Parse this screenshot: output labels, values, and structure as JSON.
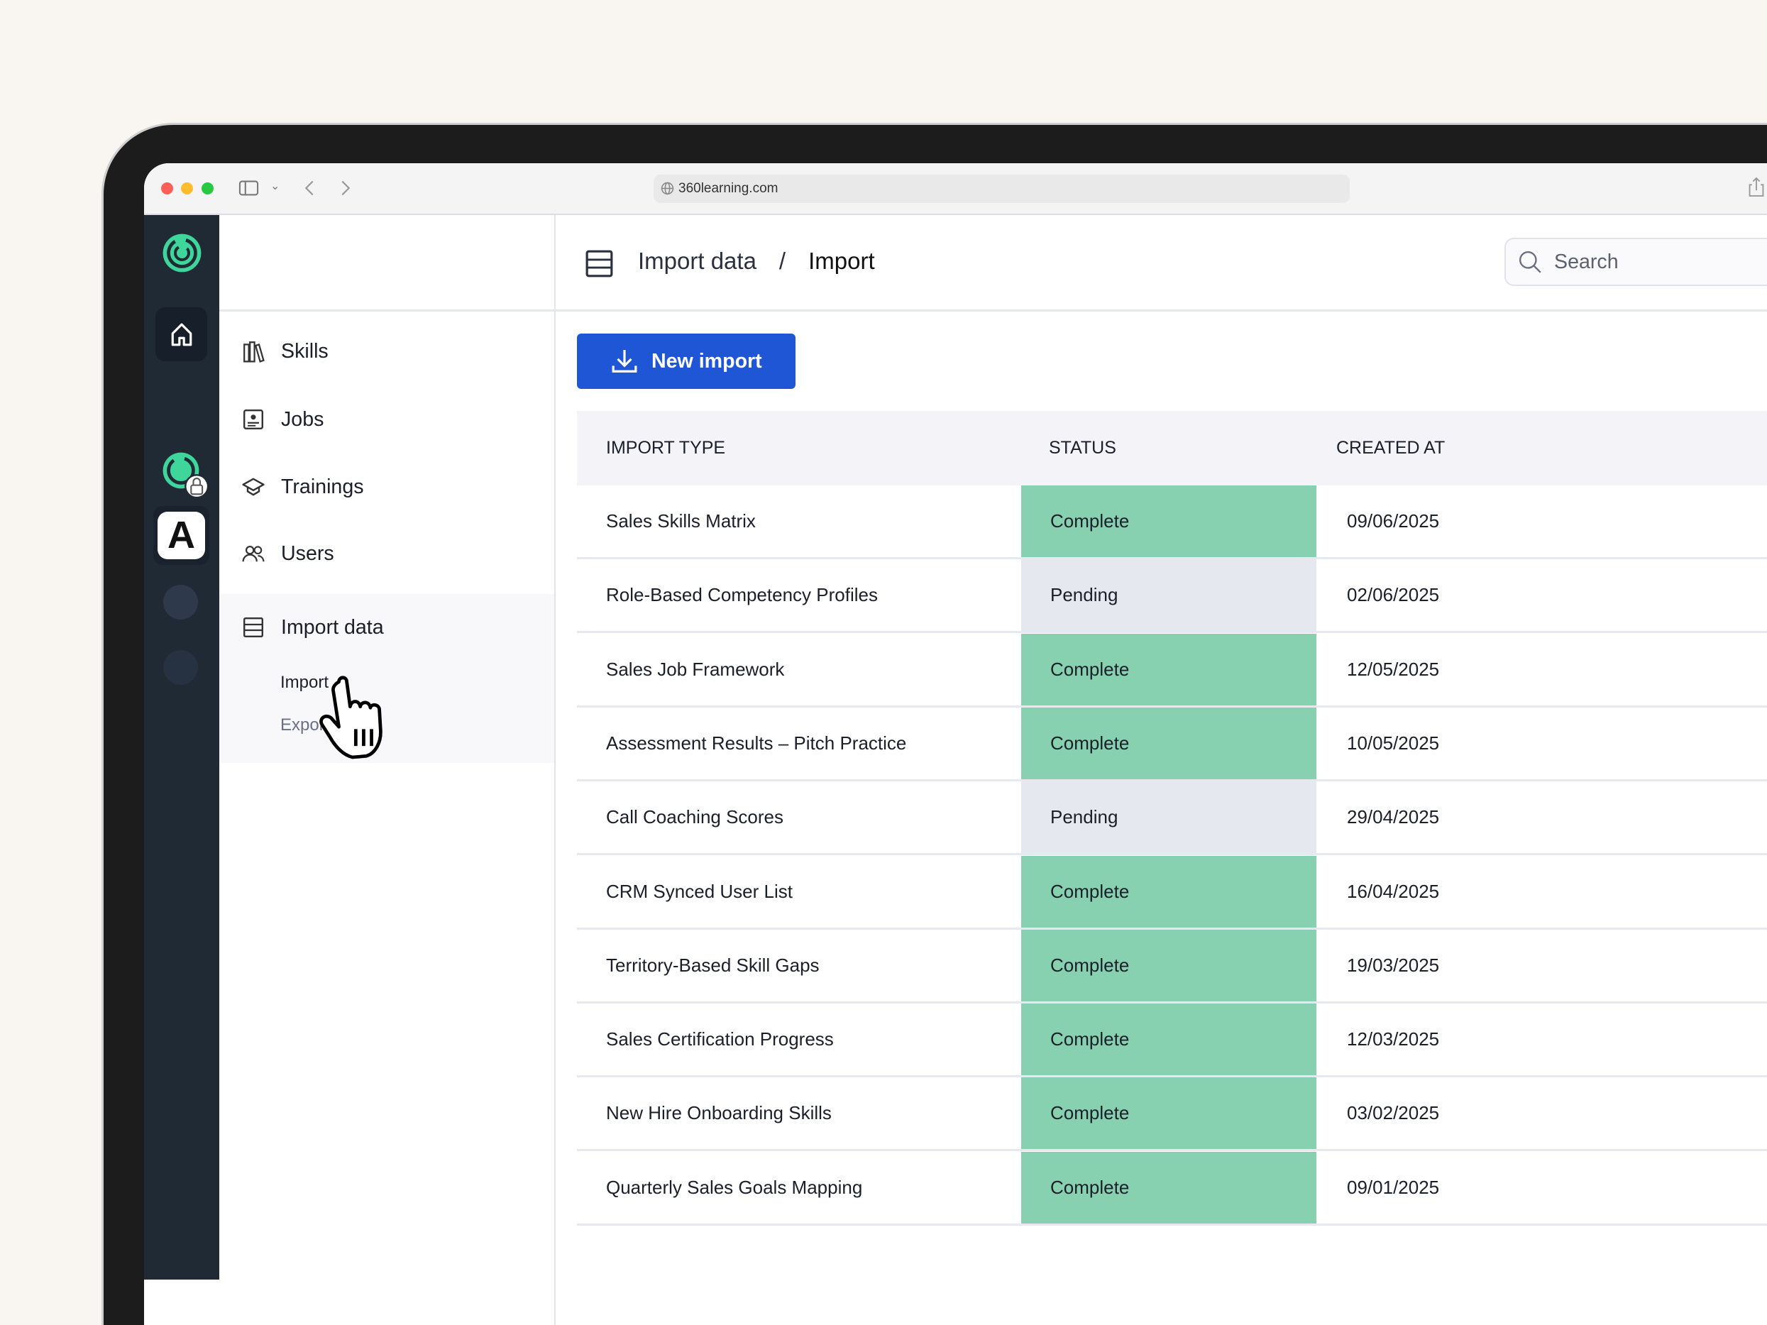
{
  "browser": {
    "url": "360learning.com"
  },
  "rail": {
    "workspace_letter": "A"
  },
  "sidebar": {
    "items": [
      {
        "label": "Skills",
        "icon": "books-icon"
      },
      {
        "label": "Jobs",
        "icon": "id-card-icon"
      },
      {
        "label": "Trainings",
        "icon": "graduation-cap-icon"
      },
      {
        "label": "Users",
        "icon": "users-icon"
      },
      {
        "label": "Import data",
        "icon": "table-icon",
        "active": true
      }
    ],
    "subitems": [
      {
        "label": "Import",
        "active": true
      },
      {
        "label": "Export"
      }
    ]
  },
  "header": {
    "breadcrumb": [
      "Import data",
      "Import"
    ],
    "separator": "/",
    "search_placeholder": "Search"
  },
  "toolbar": {
    "new_import_label": "New import"
  },
  "table": {
    "columns": [
      "IMPORT TYPE",
      "STATUS",
      "CREATED AT"
    ],
    "rows": [
      {
        "type": "Sales Skills Matrix",
        "status": "Complete",
        "created": "09/06/2025"
      },
      {
        "type": "Role-Based Competency Profiles",
        "status": "Pending",
        "created": "02/06/2025"
      },
      {
        "type": "Sales Job Framework",
        "status": "Complete",
        "created": "12/05/2025"
      },
      {
        "type": "Assessment Results – Pitch Practice",
        "status": "Complete",
        "created": "10/05/2025"
      },
      {
        "type": "Call Coaching Scores",
        "status": "Pending",
        "created": "29/04/2025"
      },
      {
        "type": "CRM Synced User List",
        "status": "Complete",
        "created": "16/04/2025"
      },
      {
        "type": "Territory-Based Skill Gaps",
        "status": "Complete",
        "created": "19/03/2025"
      },
      {
        "type": "Sales Certification Progress",
        "status": "Complete",
        "created": "12/03/2025"
      },
      {
        "type": "New Hire Onboarding Skills",
        "status": "Complete",
        "created": "03/02/2025"
      },
      {
        "type": "Quarterly Sales Goals Mapping",
        "status": "Complete",
        "created": "09/01/2025"
      }
    ]
  },
  "colors": {
    "primary": "#1f56d6",
    "complete": "#87d1b0",
    "pending": "#e5e8ef",
    "rail": "#1f2a35",
    "brand_green": "#3ed69a"
  }
}
